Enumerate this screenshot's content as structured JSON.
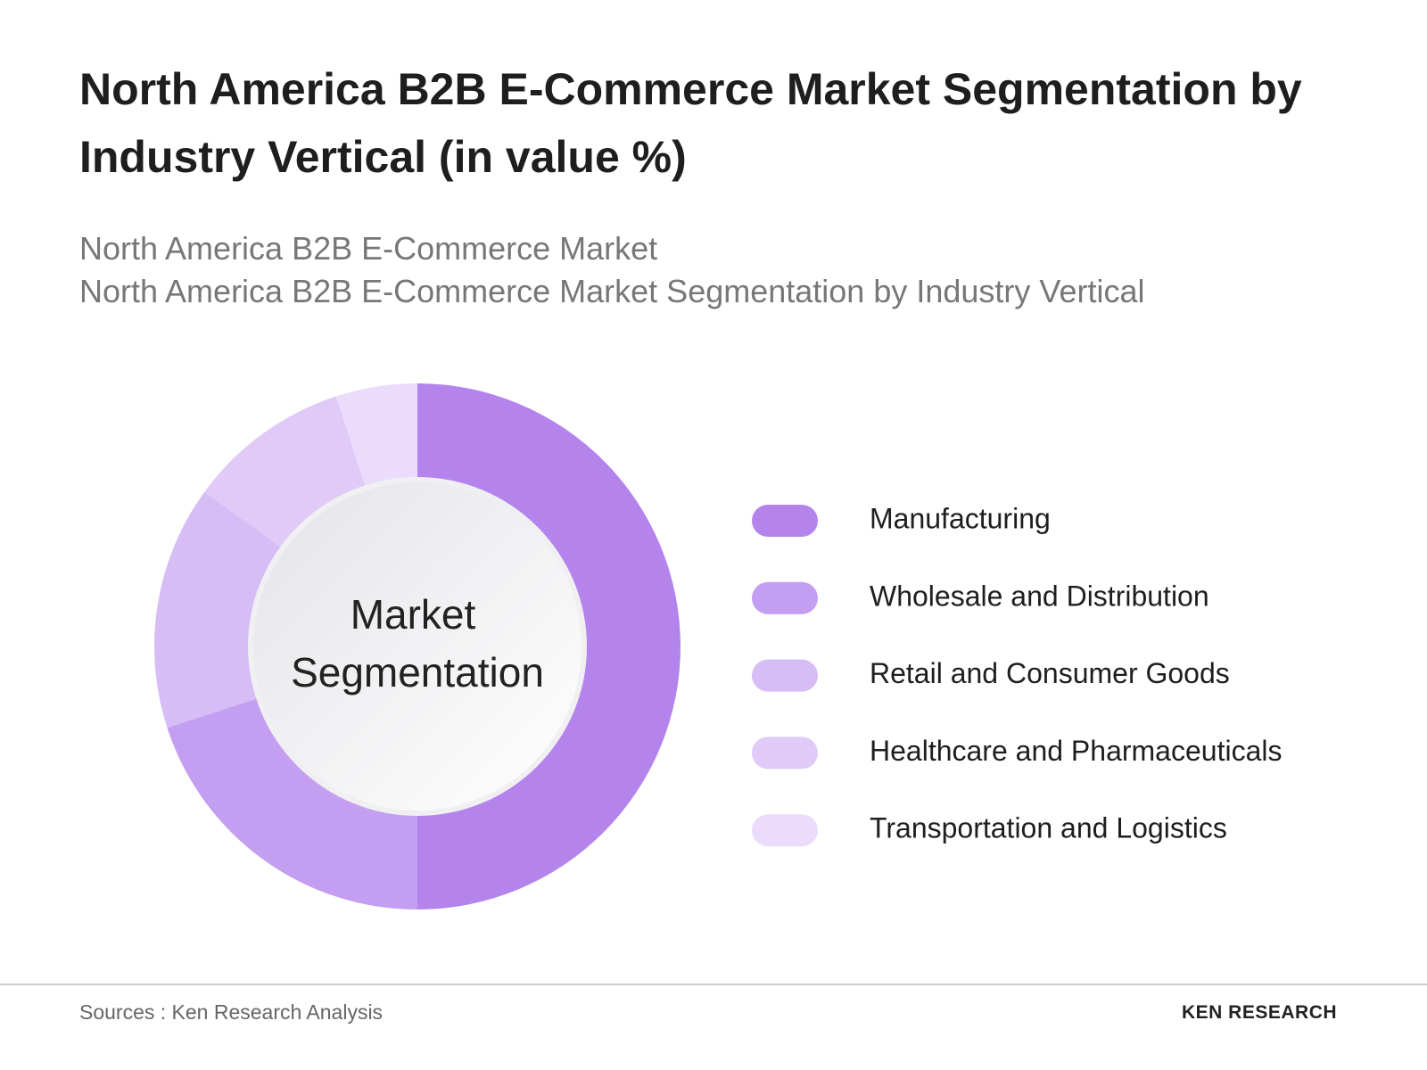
{
  "chart_data": {
    "type": "pie",
    "title": "North America B2B E-Commerce Market Segmentation by Industry Vertical (in value %)",
    "subtitles": [
      "North America B2B E-Commerce Market",
      "North America B2B E-Commerce Market Segmentation by Industry Vertical"
    ],
    "center_label": [
      "Market",
      "Segmentation"
    ],
    "categories": [
      "Manufacturing",
      "Wholesale and Distribution",
      "Retail and Consumer Goods",
      "Healthcare and Pharmaceuticals",
      "Transportation and Logistics"
    ],
    "values": [
      50,
      20,
      15,
      10,
      5
    ],
    "colors": [
      "#b484ec",
      "#c49ef0",
      "#d7bdf5",
      "#e0caf7",
      "#eadcfa"
    ],
    "source": "Sources : Ken Research Analysis",
    "brand": "KEN RESEARCH"
  }
}
